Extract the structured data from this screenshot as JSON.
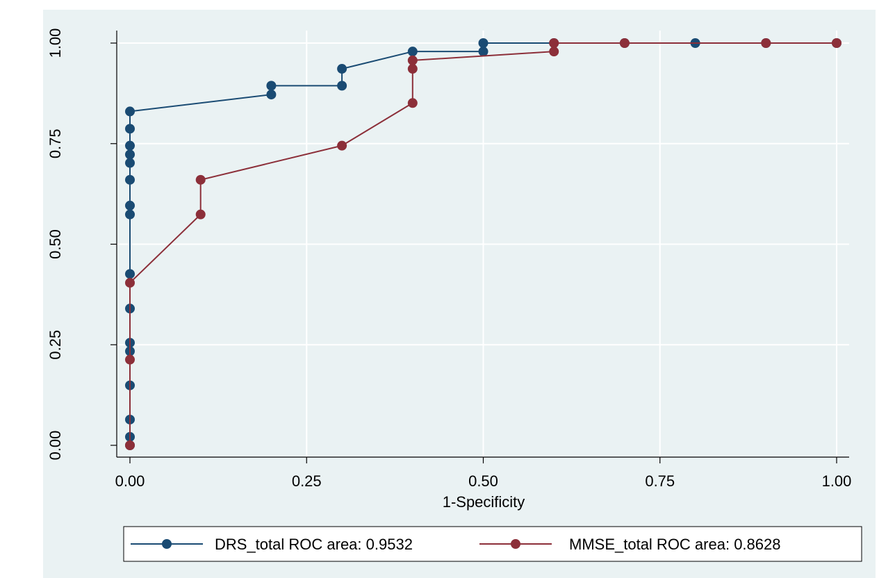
{
  "chart_data": {
    "type": "line",
    "xlabel": "1-Specificity",
    "ylabel": "",
    "xlim": [
      0,
      1
    ],
    "ylim": [
      0,
      1
    ],
    "x_ticks": [
      "0.00",
      "0.25",
      "0.50",
      "0.75",
      "1.00"
    ],
    "y_ticks": [
      "0.00",
      "0.25",
      "0.50",
      "0.75",
      "1.00"
    ],
    "grid": true,
    "legend_position": "bottom",
    "series": [
      {
        "name": "DRS_total ROC area: 0.9532",
        "color": "#1a4b73",
        "points": [
          [
            0,
            0
          ],
          [
            0,
            0.021
          ],
          [
            0,
            0.064
          ],
          [
            0,
            0.149
          ],
          [
            0,
            0.234
          ],
          [
            0,
            0.255
          ],
          [
            0,
            0.34
          ],
          [
            0,
            0.426
          ],
          [
            0,
            0.574
          ],
          [
            0,
            0.596
          ],
          [
            0,
            0.66
          ],
          [
            0,
            0.702
          ],
          [
            0,
            0.723
          ],
          [
            0,
            0.745
          ],
          [
            0,
            0.787
          ],
          [
            0,
            0.83
          ],
          [
            0.2,
            0.872
          ],
          [
            0.2,
            0.894
          ],
          [
            0.3,
            0.894
          ],
          [
            0.3,
            0.936
          ],
          [
            0.4,
            0.979
          ],
          [
            0.5,
            0.979
          ],
          [
            0.5,
            1.0
          ],
          [
            0.6,
            1.0
          ],
          [
            0.7,
            1.0
          ],
          [
            0.8,
            1.0
          ],
          [
            0.9,
            1.0
          ],
          [
            1.0,
            1.0
          ]
        ]
      },
      {
        "name": "MMSE_total ROC area: 0.8628",
        "color": "#8c2f39",
        "points": [
          [
            0,
            0
          ],
          [
            0,
            0.213
          ],
          [
            0,
            0.404
          ],
          [
            0.1,
            0.574
          ],
          [
            0.1,
            0.66
          ],
          [
            0.3,
            0.745
          ],
          [
            0.4,
            0.851
          ],
          [
            0.4,
            0.936
          ],
          [
            0.4,
            0.957
          ],
          [
            0.6,
            0.979
          ],
          [
            0.6,
            1.0
          ],
          [
            0.7,
            1.0
          ],
          [
            0.9,
            1.0
          ],
          [
            1.0,
            1.0
          ]
        ]
      }
    ]
  }
}
